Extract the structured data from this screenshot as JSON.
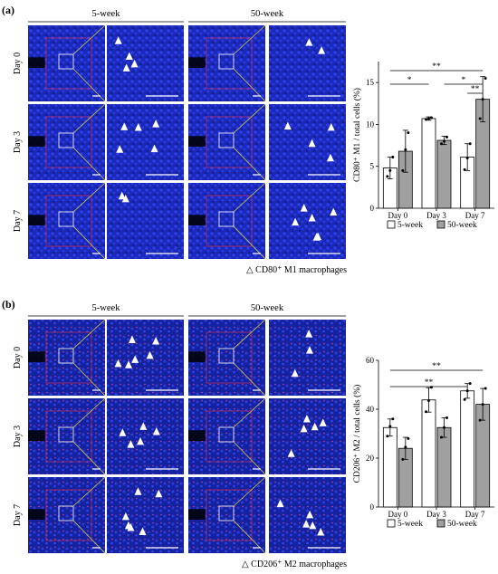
{
  "colors": {
    "nucleus_blue": "#1f2fd0",
    "zoom_box": "#d8d040",
    "roi_box": "#e03050",
    "bar_5week": "#ffffff",
    "bar_50week": "#a0a0a0",
    "arrow": "#ffffff",
    "scale_bar": "#ffffff"
  },
  "panels": [
    {
      "label": "(a)",
      "group_headers": [
        "5-week",
        "50-week"
      ],
      "row_labels": [
        "Day 0",
        "Day 3",
        "Day 7"
      ],
      "footnote": "△ CD80⁺ M1 macrophages",
      "arrow_icon": "white-triangle-arrow",
      "arrow_counts": [
        [
          4,
          2
        ],
        [
          5,
          4
        ],
        [
          2,
          6
        ]
      ]
    },
    {
      "label": "(b)",
      "group_headers": [
        "5-week",
        "50-week"
      ],
      "row_labels": [
        "Day 0",
        "Day 3",
        "Day 7"
      ],
      "footnote": "△ CD206⁺ M2 macrophages",
      "arrow_icon": "white-triangle-arrow",
      "arrow_counts": [
        [
          6,
          3
        ],
        [
          5,
          5
        ],
        [
          6,
          5
        ]
      ]
    }
  ],
  "chart_data": [
    {
      "type": "bar",
      "ylabel": "CD80⁺ M1 / total cells (%)",
      "categories": [
        "Day 0",
        "Day 3",
        "Day 7"
      ],
      "ylim": [
        0,
        17.5
      ],
      "yticks": [
        0,
        5,
        10,
        15
      ],
      "series": [
        {
          "name": "5-week",
          "values": [
            4.8,
            10.7,
            6.1
          ],
          "errors": [
            1.3,
            0.2,
            1.6
          ],
          "points": [
            [
              3.8,
              4.5,
              6.1
            ],
            [
              10.6,
              10.7,
              10.8
            ],
            [
              4.6,
              6.0,
              7.7
            ]
          ]
        },
        {
          "name": "50-week",
          "values": [
            6.8,
            8.1,
            13.0
          ],
          "errors": [
            2.5,
            0.5,
            2.7
          ],
          "points": [
            [
              4.5,
              7.0,
              9.0
            ],
            [
              7.7,
              8.0,
              8.5
            ],
            [
              10.7,
              13.0,
              15.5
            ]
          ]
        }
      ],
      "significance": [
        {
          "label": "**",
          "from": "Day 0",
          "to": "Day 7",
          "level": 1
        },
        {
          "label": "*",
          "from": "Day 0",
          "to": "Day 3",
          "level": 2
        },
        {
          "label": "*",
          "from": "Day 3",
          "to": "Day 7",
          "level": 2
        },
        {
          "label": "**",
          "from": "Day 7",
          "to": "Day 7",
          "level": 3
        }
      ],
      "legend": [
        "5-week",
        "50-week"
      ],
      "legend_position": "bottom"
    },
    {
      "type": "bar",
      "ylabel": "CD206⁺ M2 / total cells (%)",
      "categories": [
        "Day 0",
        "Day 3",
        "Day 7"
      ],
      "ylim": [
        0,
        60
      ],
      "yticks": [
        0,
        20,
        40,
        60
      ],
      "series": [
        {
          "name": "5-week",
          "values": [
            32.5,
            43.8,
            47.5
          ],
          "errors": [
            3.5,
            5.0,
            3.0
          ],
          "points": [
            [
              29.0,
              33.0,
              36.0
            ],
            [
              39.0,
              43.5,
              49.0
            ],
            [
              44.0,
              47.5,
              50.5
            ]
          ]
        },
        {
          "name": "50-week",
          "values": [
            24.0,
            32.5,
            42.0
          ],
          "errors": [
            4.5,
            4.0,
            6.5
          ],
          "points": [
            [
              19.5,
              24.5,
              28.0
            ],
            [
              28.5,
              32.5,
              36.5
            ],
            [
              35.5,
              42.0,
              48.5
            ]
          ]
        }
      ],
      "significance": [
        {
          "label": "**",
          "from": "Day 0",
          "to": "Day 7",
          "level": 1
        },
        {
          "label": "**",
          "from": "Day 0",
          "to": "Day 7",
          "level": 2
        }
      ],
      "legend": [
        "5-week",
        "50-week"
      ],
      "legend_position": "bottom"
    }
  ]
}
